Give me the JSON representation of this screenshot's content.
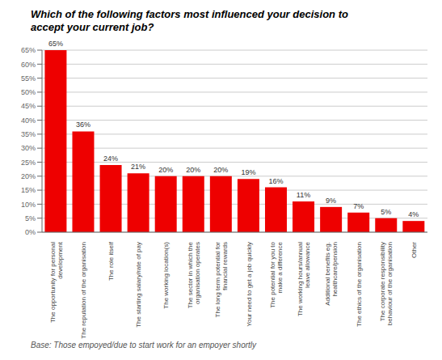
{
  "chart_data": {
    "type": "bar",
    "title": "Which of the following factors most influenced your decision to\naccept your current job?",
    "annotations": [
      "Base: Those empoyed/due to start work for an empoyer shortly"
    ],
    "categories": [
      "The opportunity for personal\ndevelopment",
      "The reputation of the organisation",
      "The role itself",
      "The starting salary/rate of pay",
      "The working location(s)",
      "The sector in which the\norganisation operates",
      "The long term potential for\nfinancial rewards",
      "Your need to get a job quickly",
      "The potential for you to\nmake a difference",
      "The working hours/annual\nleave allowance",
      "Additional benefits eg.\nhealthcare/pension",
      "The ethics of the organisation",
      "The corporate responsibility\nbehaviour of the organisation",
      "Other"
    ],
    "values": [
      65,
      36,
      24,
      21,
      20,
      20,
      20,
      19,
      16,
      11,
      9,
      7,
      5,
      4
    ],
    "value_labels": [
      "65%",
      "36%",
      "24%",
      "21%",
      "20%",
      "20%",
      "20%",
      "19%",
      "16%",
      "11%",
      "9%",
      "7%",
      "5%",
      "4%"
    ],
    "data_labels": true,
    "color": "#ee0000",
    "ylim": [
      0,
      65
    ],
    "yticks": [
      {
        "value": 0,
        "label": "0%"
      },
      {
        "value": 5,
        "label": "5%"
      },
      {
        "value": 10,
        "label": "10%"
      },
      {
        "value": 15,
        "label": "15%"
      },
      {
        "value": 20,
        "label": "20%"
      },
      {
        "value": 25,
        "label": "25%"
      },
      {
        "value": 30,
        "label": "30%"
      },
      {
        "value": 35,
        "label": "35%"
      },
      {
        "value": 40,
        "label": "40%"
      },
      {
        "value": 45,
        "label": "45%"
      },
      {
        "value": 50,
        "label": "50%"
      },
      {
        "value": 55,
        "label": "55%"
      },
      {
        "value": 60,
        "label": "60%"
      },
      {
        "value": 65,
        "label": "65%"
      }
    ],
    "grid": true
  }
}
